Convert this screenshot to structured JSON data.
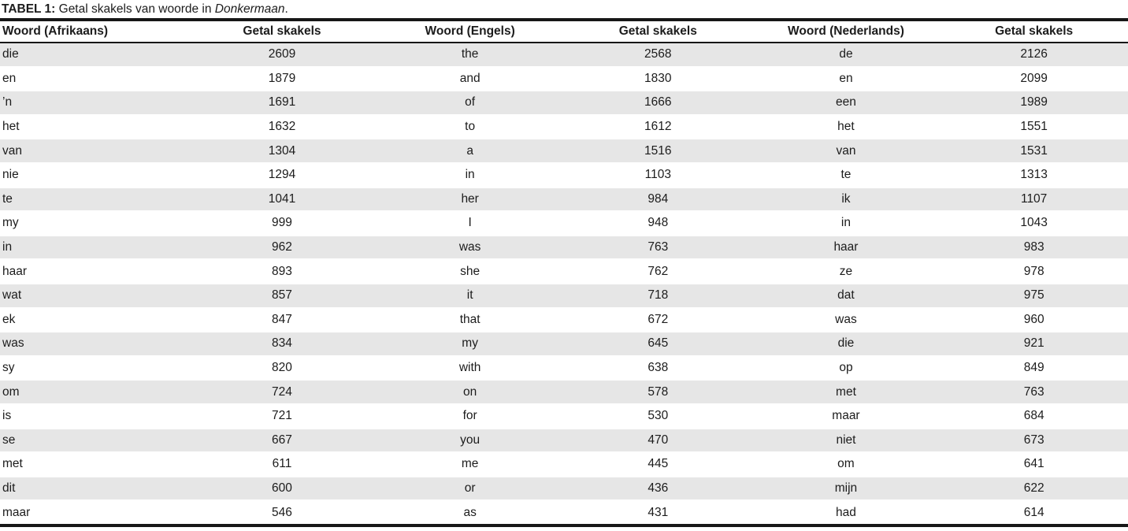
{
  "caption": {
    "label": "TABEL 1:",
    "mid": " Getal skakels van woorde in ",
    "book_title": "Donkermaan",
    "suffix": "."
  },
  "colors": {
    "stripe_gray": "#e6e6e6",
    "rule_black": "#171717",
    "text": "#1c1c1c",
    "background": "#ffffff"
  },
  "table": {
    "headers": [
      "Woord (Afrikaans)",
      "Getal skakels",
      "Woord (Engels)",
      "Getal skakels",
      "Woord (Nederlands)",
      "Getal skakels"
    ],
    "rows": [
      [
        "die",
        "2609",
        "the",
        "2568",
        "de",
        "2126"
      ],
      [
        "en",
        "1879",
        "and",
        "1830",
        "en",
        "2099"
      ],
      [
        "’n",
        "1691",
        "of",
        "1666",
        "een",
        "1989"
      ],
      [
        "het",
        "1632",
        "to",
        "1612",
        "het",
        "1551"
      ],
      [
        "van",
        "1304",
        "a",
        "1516",
        "van",
        "1531"
      ],
      [
        "nie",
        "1294",
        "in",
        "1103",
        "te",
        "1313"
      ],
      [
        "te",
        "1041",
        "her",
        "984",
        "ik",
        "1107"
      ],
      [
        "my",
        "999",
        "I",
        "948",
        "in",
        "1043"
      ],
      [
        "in",
        "962",
        "was",
        "763",
        "haar",
        "983"
      ],
      [
        "haar",
        "893",
        "she",
        "762",
        "ze",
        "978"
      ],
      [
        "wat",
        "857",
        "it",
        "718",
        "dat",
        "975"
      ],
      [
        "ek",
        "847",
        "that",
        "672",
        "was",
        "960"
      ],
      [
        "was",
        "834",
        "my",
        "645",
        "die",
        "921"
      ],
      [
        "sy",
        "820",
        "with",
        "638",
        "op",
        "849"
      ],
      [
        "om",
        "724",
        "on",
        "578",
        "met",
        "763"
      ],
      [
        "is",
        "721",
        "for",
        "530",
        "maar",
        "684"
      ],
      [
        "se",
        "667",
        "you",
        "470",
        "niet",
        "673"
      ],
      [
        "met",
        "611",
        "me",
        "445",
        "om",
        "641"
      ],
      [
        "dit",
        "600",
        "or",
        "436",
        "mijn",
        "622"
      ],
      [
        "maar",
        "546",
        "as",
        "431",
        "had",
        "614"
      ]
    ]
  }
}
